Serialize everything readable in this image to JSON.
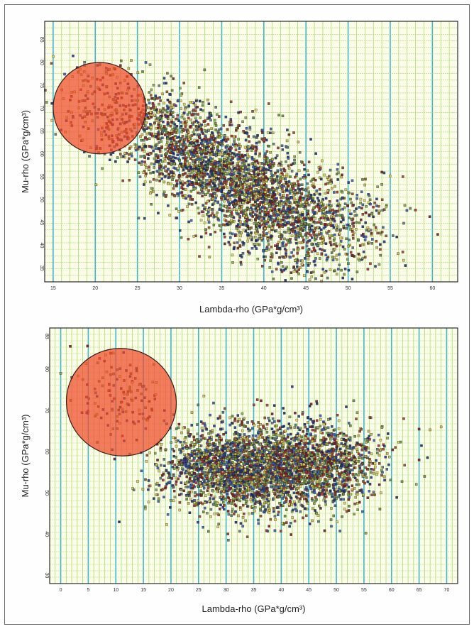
{
  "chart_data": [
    {
      "type": "scatter",
      "title": "",
      "xlabel": "Lambda-rho (GPa*g/cm³)",
      "ylabel": "Mu-rho (GPa*g/cm³)",
      "xlim": [
        14,
        63
      ],
      "ylim": [
        32,
        89
      ],
      "x_ticks": [
        15,
        20,
        25,
        30,
        35,
        40,
        45,
        50,
        55,
        60
      ],
      "y_ticks": [
        35,
        40,
        45,
        50,
        55,
        60,
        65,
        70,
        75,
        80,
        85
      ],
      "y_tick_labels": [
        "35",
        "40",
        "45",
        "50",
        "55",
        "60",
        "65",
        "70",
        "75",
        "80",
        "85"
      ],
      "grid": true,
      "highlight_ellipse": {
        "cx": 20.5,
        "cy": 70,
        "rx": 5.5,
        "ry": 10,
        "tilt_deg": 10,
        "color": "#f04a28"
      },
      "clusters": [
        {
          "cx": 38,
          "cy": 52,
          "sx": 6.0,
          "sy": 8.5,
          "rho": -0.62,
          "n": 2400
        },
        {
          "cx": 30,
          "cy": 62,
          "sx": 4.0,
          "sy": 6.0,
          "rho": -0.5,
          "n": 700
        },
        {
          "cx": 47,
          "cy": 47,
          "sx": 4.5,
          "sy": 5.0,
          "rho": -0.3,
          "n": 450
        },
        {
          "cx": 21,
          "cy": 70,
          "sx": 3.0,
          "sy": 5.0,
          "rho": -0.3,
          "n": 180
        }
      ],
      "outliers": [
        [
          26,
          80
        ],
        [
          26.5,
          79.5
        ],
        [
          29,
          77
        ],
        [
          54,
          56
        ],
        [
          56.5,
          55
        ],
        [
          51,
          45
        ],
        [
          41,
          38
        ],
        [
          40,
          37.5
        ]
      ],
      "colors": [
        "#2b3b8f",
        "#3a5fb0",
        "#7a1f1f",
        "#a83232",
        "#c9b64a",
        "#e0cf5a",
        "#6b8f3a",
        "#8aa64e",
        "#5a7a7a",
        "#1f2f6a",
        "#9a4a2a"
      ]
    },
    {
      "type": "scatter",
      "title": "",
      "xlabel": "Lambda-rho (GPa*g/cm³)",
      "ylabel": "Mu-rho (GPa*g/cm³)",
      "xlim": [
        -2,
        72
      ],
      "ylim": [
        28,
        90
      ],
      "x_ticks": [
        0,
        5,
        10,
        15,
        20,
        25,
        30,
        35,
        40,
        45,
        50,
        55,
        60,
        65,
        70
      ],
      "y_ticks": [
        30,
        40,
        50,
        60,
        70,
        80,
        88
      ],
      "y_tick_labels": [
        "30",
        "40",
        "50",
        "60",
        "70",
        "80",
        "88"
      ],
      "grid": true,
      "highlight_ellipse": {
        "cx": 11,
        "cy": 72,
        "rx": 10,
        "ry": 13,
        "tilt_deg": 20,
        "color": "#f04a28"
      },
      "clusters": [
        {
          "cx": 38,
          "cy": 56,
          "sx": 9.0,
          "sy": 5.5,
          "rho": 0.05,
          "n": 2600
        },
        {
          "cx": 28,
          "cy": 57,
          "sx": 4.5,
          "sy": 4.5,
          "rho": 0.0,
          "n": 500
        },
        {
          "cx": 48,
          "cy": 58,
          "sx": 5.0,
          "sy": 4.5,
          "rho": 0.0,
          "n": 500
        },
        {
          "cx": 11,
          "cy": 73,
          "sx": 4.5,
          "sy": 5.0,
          "rho": -0.2,
          "n": 140
        }
      ],
      "outliers": [
        [
          0,
          79
        ],
        [
          2,
          78
        ],
        [
          69,
          66
        ],
        [
          65,
          58
        ],
        [
          66,
          54
        ]
      ],
      "colors": [
        "#2b3b8f",
        "#3a5fb0",
        "#7a1f1f",
        "#a83232",
        "#c9b64a",
        "#e0cf5a",
        "#6b8f3a",
        "#8aa64e",
        "#5a7a7a",
        "#1f2f6a",
        "#9a4a2a"
      ]
    }
  ]
}
